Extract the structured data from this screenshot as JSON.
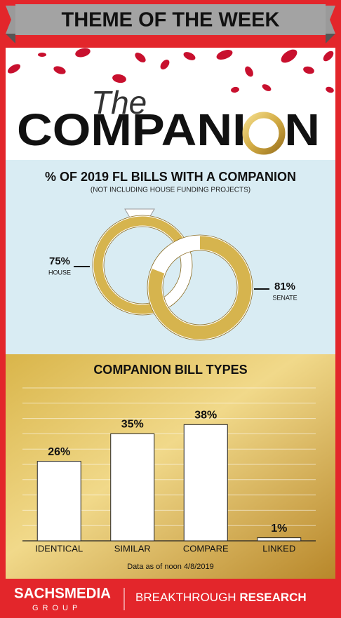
{
  "header": {
    "banner": "THEME OF THE WEEK",
    "title_script": "The",
    "title": "COMPANION"
  },
  "chart_data": [
    {
      "type": "donut",
      "title": "% OF 2019 FL BILLS WITH A COMPANION",
      "subtitle": "(NOT INCLUDING HOUSE FUNDING PROJECTS)",
      "categories": [
        "HOUSE",
        "SENATE"
      ],
      "values": [
        75,
        81
      ],
      "value_labels": [
        "75%",
        "81%"
      ],
      "color": "#d6b44e"
    },
    {
      "type": "bar",
      "title": "COMPANION BILL TYPES",
      "categories": [
        "IDENTICAL",
        "SIMILAR",
        "COMPARE",
        "LINKED"
      ],
      "values": [
        26,
        35,
        38,
        1
      ],
      "value_labels": [
        "26%",
        "35%",
        "38%",
        "1%"
      ],
      "color": "#ffffff",
      "ylim": [
        0,
        50
      ],
      "yticks": [
        0,
        5,
        10,
        15,
        20,
        25,
        30,
        35,
        40,
        45,
        50
      ],
      "grid": true
    }
  ],
  "footer": {
    "note": "Data as of noon 4/8/2019",
    "brand_main": "SACHSMEDIA",
    "brand_sub": "GROUP",
    "tagline_light": "BREAKTHROUGH",
    "tagline_bold": "RESEARCH"
  }
}
